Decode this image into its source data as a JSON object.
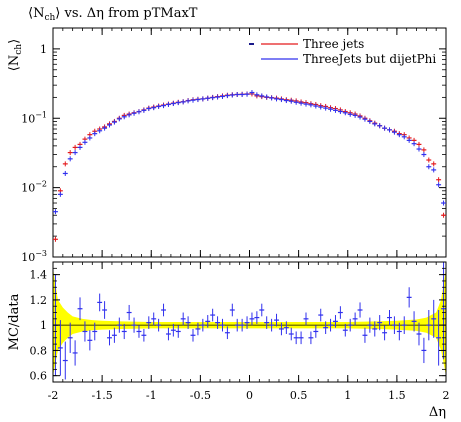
{
  "chart_data": [
    {
      "type": "scatter",
      "panel": "main",
      "title_parts": {
        "pre": "⟨N",
        "sub": "ch",
        "post": "⟩ vs. Δη from pTMaxT"
      },
      "ylabel_parts": {
        "pre": "⟨N",
        "sub": "ch",
        "post": "⟩"
      },
      "y_scale": "log",
      "xlim": [
        -2,
        2
      ],
      "ylim": [
        0.001,
        2
      ],
      "y_ticks": [
        {
          "value": 1,
          "label": "1"
        },
        {
          "value": 0.1,
          "label": "10",
          "sup": "−1"
        },
        {
          "value": 0.01,
          "label": "10",
          "sup": "−2"
        },
        {
          "value": 0.001,
          "label": "10",
          "sup": "−3"
        }
      ],
      "legend_placement": "top-right",
      "series": [
        {
          "name": "Three jets",
          "color": "#e41a1c",
          "x": [
            -1.975,
            -1.925,
            -1.875,
            -1.825,
            -1.775,
            -1.725,
            -1.675,
            -1.625,
            -1.575,
            -1.525,
            -1.475,
            -1.425,
            -1.375,
            -1.325,
            -1.275,
            -1.225,
            -1.175,
            -1.125,
            -1.075,
            -1.025,
            -0.975,
            -0.925,
            -0.875,
            -0.825,
            -0.775,
            -0.725,
            -0.675,
            -0.625,
            -0.575,
            -0.525,
            -0.475,
            -0.425,
            -0.375,
            -0.325,
            -0.275,
            -0.225,
            -0.175,
            -0.125,
            -0.075,
            -0.025,
            0.025,
            0.075,
            0.125,
            0.175,
            0.225,
            0.275,
            0.325,
            0.375,
            0.425,
            0.475,
            0.525,
            0.575,
            0.625,
            0.675,
            0.725,
            0.775,
            0.825,
            0.875,
            0.925,
            0.975,
            1.025,
            1.075,
            1.125,
            1.175,
            1.225,
            1.275,
            1.325,
            1.375,
            1.425,
            1.475,
            1.525,
            1.575,
            1.625,
            1.675,
            1.725,
            1.775,
            1.825,
            1.875,
            1.925,
            1.975
          ],
          "y": [
            0.0018,
            0.009,
            0.022,
            0.032,
            0.038,
            0.042,
            0.05,
            0.058,
            0.065,
            0.07,
            0.075,
            0.083,
            0.09,
            0.1,
            0.11,
            0.115,
            0.12,
            0.125,
            0.132,
            0.14,
            0.145,
            0.15,
            0.155,
            0.16,
            0.165,
            0.17,
            0.173,
            0.18,
            0.185,
            0.188,
            0.19,
            0.195,
            0.2,
            0.205,
            0.21,
            0.215,
            0.218,
            0.22,
            0.222,
            0.224,
            0.224,
            0.21,
            0.205,
            0.2,
            0.198,
            0.195,
            0.19,
            0.185,
            0.182,
            0.178,
            0.172,
            0.168,
            0.162,
            0.158,
            0.152,
            0.148,
            0.142,
            0.138,
            0.132,
            0.125,
            0.12,
            0.115,
            0.108,
            0.1,
            0.092,
            0.085,
            0.078,
            0.072,
            0.068,
            0.065,
            0.06,
            0.058,
            0.052,
            0.048,
            0.042,
            0.035,
            0.025,
            0.022,
            0.013,
            0.004
          ]
        },
        {
          "name": "ThreeJets but dijetPhi",
          "color": "#3030ee",
          "x": [
            -1.975,
            -1.925,
            -1.875,
            -1.825,
            -1.775,
            -1.725,
            -1.675,
            -1.625,
            -1.575,
            -1.525,
            -1.475,
            -1.425,
            -1.375,
            -1.325,
            -1.275,
            -1.225,
            -1.175,
            -1.125,
            -1.075,
            -1.025,
            -0.975,
            -0.925,
            -0.875,
            -0.825,
            -0.775,
            -0.725,
            -0.675,
            -0.625,
            -0.575,
            -0.525,
            -0.475,
            -0.425,
            -0.375,
            -0.325,
            -0.275,
            -0.225,
            -0.175,
            -0.125,
            -0.075,
            -0.025,
            0.025,
            0.075,
            0.125,
            0.175,
            0.225,
            0.275,
            0.325,
            0.375,
            0.425,
            0.475,
            0.525,
            0.575,
            0.625,
            0.675,
            0.725,
            0.775,
            0.825,
            0.875,
            0.925,
            0.975,
            1.025,
            1.075,
            1.125,
            1.175,
            1.225,
            1.275,
            1.325,
            1.375,
            1.425,
            1.475,
            1.525,
            1.575,
            1.625,
            1.675,
            1.725,
            1.775,
            1.825,
            1.875,
            1.925,
            1.975
          ],
          "y": [
            0.0045,
            0.008,
            0.016,
            0.026,
            0.032,
            0.038,
            0.045,
            0.052,
            0.06,
            0.066,
            0.072,
            0.08,
            0.088,
            0.098,
            0.105,
            0.112,
            0.118,
            0.124,
            0.13,
            0.138,
            0.142,
            0.148,
            0.152,
            0.158,
            0.163,
            0.168,
            0.172,
            0.178,
            0.182,
            0.186,
            0.19,
            0.194,
            0.198,
            0.202,
            0.206,
            0.212,
            0.216,
            0.22,
            0.22,
            0.222,
            0.235,
            0.218,
            0.21,
            0.203,
            0.196,
            0.19,
            0.186,
            0.18,
            0.176,
            0.17,
            0.165,
            0.16,
            0.156,
            0.15,
            0.145,
            0.14,
            0.135,
            0.13,
            0.125,
            0.12,
            0.114,
            0.11,
            0.104,
            0.097,
            0.09,
            0.083,
            0.078,
            0.072,
            0.068,
            0.063,
            0.058,
            0.054,
            0.048,
            0.043,
            0.036,
            0.03,
            0.02,
            0.018,
            0.011,
            0.006
          ]
        }
      ]
    },
    {
      "type": "scatter",
      "panel": "ratio",
      "ylabel": "MC/data",
      "xlabel": "Δη",
      "xlim": [
        -2,
        2
      ],
      "ylim": [
        0.55,
        1.5
      ],
      "x_ticks": [
        {
          "value": -2,
          "label": "-2"
        },
        {
          "value": -1.5,
          "label": "-1.5"
        },
        {
          "value": -1,
          "label": "-1"
        },
        {
          "value": -0.5,
          "label": "-0.5"
        },
        {
          "value": 0,
          "label": "0"
        },
        {
          "value": 0.5,
          "label": "0.5"
        },
        {
          "value": 1,
          "label": "1"
        },
        {
          "value": 1.5,
          "label": "1.5"
        },
        {
          "value": 2,
          "label": "2"
        }
      ],
      "y_ticks": [
        {
          "value": 0.6,
          "label": "0.6"
        },
        {
          "value": 0.8,
          "label": "0.8"
        },
        {
          "value": 1.0,
          "label": "1"
        },
        {
          "value": 1.2,
          "label": "1.2"
        },
        {
          "value": 1.4,
          "label": "1.4"
        }
      ],
      "band": {
        "color": "#ffff00",
        "x": [
          -2,
          -1.95,
          -1.9,
          -1.85,
          -1.8,
          -1.7,
          -1.6,
          -1.5,
          -1.3,
          -1.0,
          -0.5,
          0,
          0.5,
          1.0,
          1.3,
          1.5,
          1.6,
          1.7,
          1.8,
          1.85,
          1.9,
          1.95,
          2
        ],
        "lo": [
          0.6,
          0.8,
          0.86,
          0.9,
          0.93,
          0.95,
          0.96,
          0.965,
          0.97,
          0.975,
          0.975,
          0.975,
          0.975,
          0.975,
          0.97,
          0.965,
          0.96,
          0.955,
          0.94,
          0.92,
          0.9,
          0.8,
          0.6
        ],
        "hi": [
          1.45,
          1.2,
          1.14,
          1.1,
          1.07,
          1.05,
          1.04,
          1.035,
          1.03,
          1.025,
          1.025,
          1.025,
          1.025,
          1.025,
          1.03,
          1.035,
          1.04,
          1.045,
          1.06,
          1.08,
          1.1,
          1.2,
          1.45
        ]
      },
      "series": [
        {
          "name": "ThreeJets but dijetPhi",
          "color": "#3030ee",
          "x": [
            -1.975,
            -1.925,
            -1.875,
            -1.825,
            -1.775,
            -1.725,
            -1.675,
            -1.625,
            -1.575,
            -1.525,
            -1.475,
            -1.425,
            -1.375,
            -1.325,
            -1.275,
            -1.225,
            -1.175,
            -1.125,
            -1.075,
            -1.025,
            -0.975,
            -0.925,
            -0.875,
            -0.825,
            -0.775,
            -0.725,
            -0.675,
            -0.625,
            -0.575,
            -0.525,
            -0.475,
            -0.425,
            -0.375,
            -0.325,
            -0.275,
            -0.225,
            -0.175,
            -0.125,
            -0.075,
            -0.025,
            0.025,
            0.075,
            0.125,
            0.175,
            0.225,
            0.275,
            0.325,
            0.375,
            0.425,
            0.475,
            0.525,
            0.575,
            0.625,
            0.675,
            0.725,
            0.775,
            0.825,
            0.875,
            0.925,
            0.975,
            1.025,
            1.075,
            1.125,
            1.175,
            1.225,
            1.275,
            1.325,
            1.375,
            1.425,
            1.475,
            1.525,
            1.575,
            1.625,
            1.675,
            1.725,
            1.775,
            1.825,
            1.875,
            1.925,
            1.975
          ],
          "y": [
            1.0,
            0.82,
            0.72,
            0.9,
            0.78,
            1.13,
            0.95,
            0.88,
            0.95,
            1.18,
            1.12,
            0.9,
            0.92,
            1.0,
            0.95,
            1.1,
            1.0,
            0.95,
            0.92,
            1.02,
            1.05,
            1.0,
            1.12,
            0.93,
            0.96,
            0.95,
            1.05,
            1.02,
            0.92,
            0.97,
            1.0,
            1.03,
            1.08,
            1.02,
            1.0,
            0.94,
            1.12,
            1.0,
            1.0,
            1.02,
            1.05,
            1.06,
            1.12,
            1.02,
            1.0,
            1.04,
            0.97,
            0.98,
            0.93,
            0.9,
            0.9,
            1.05,
            0.9,
            0.95,
            1.08,
            0.98,
            1.0,
            1.03,
            1.1,
            0.96,
            1.0,
            1.05,
            1.12,
            0.92,
            1.0,
            0.97,
            1.02,
            0.94,
            1.06,
            1.0,
            0.95,
            1.0,
            1.22,
            1.03,
            0.93,
            0.8,
            1.0,
            1.05,
            0.9,
            1.13
          ],
          "err": [
            0.4,
            0.22,
            0.15,
            0.12,
            0.1,
            0.09,
            0.08,
            0.08,
            0.07,
            0.07,
            0.07,
            0.06,
            0.06,
            0.06,
            0.06,
            0.06,
            0.06,
            0.05,
            0.05,
            0.05,
            0.05,
            0.05,
            0.05,
            0.05,
            0.05,
            0.05,
            0.05,
            0.05,
            0.05,
            0.05,
            0.05,
            0.05,
            0.05,
            0.05,
            0.05,
            0.05,
            0.05,
            0.05,
            0.05,
            0.05,
            0.05,
            0.05,
            0.05,
            0.05,
            0.05,
            0.05,
            0.05,
            0.05,
            0.05,
            0.05,
            0.05,
            0.05,
            0.05,
            0.05,
            0.05,
            0.05,
            0.05,
            0.05,
            0.05,
            0.05,
            0.05,
            0.05,
            0.06,
            0.06,
            0.06,
            0.06,
            0.06,
            0.06,
            0.06,
            0.07,
            0.07,
            0.07,
            0.08,
            0.08,
            0.09,
            0.1,
            0.12,
            0.15,
            0.22,
            0.4
          ]
        }
      ]
    }
  ]
}
